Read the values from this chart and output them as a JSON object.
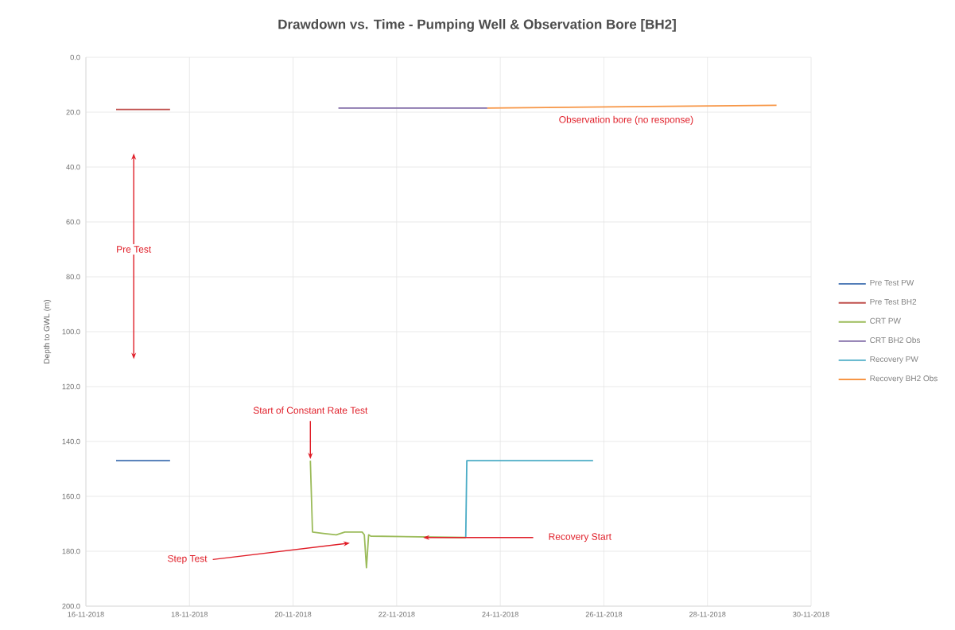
{
  "chart_data": {
    "type": "line",
    "title": "Drawdown vs. Time - Pumping Well & Observation Bore [BH2]",
    "ylabel": "Depth to GWL (m)",
    "xlim": [
      "2018-11-16",
      "2018-11-30"
    ],
    "xticks": [
      {
        "value": "2018-11-16",
        "label": "16-11-2018"
      },
      {
        "value": "2018-11-18",
        "label": "18-11-2018"
      },
      {
        "value": "2018-11-20",
        "label": "20-11-2018"
      },
      {
        "value": "2018-11-22",
        "label": "22-11-2018"
      },
      {
        "value": "2018-11-24",
        "label": "24-11-2018"
      },
      {
        "value": "2018-11-26",
        "label": "26-11-2018"
      },
      {
        "value": "2018-11-28",
        "label": "28-11-2018"
      },
      {
        "value": "2018-11-30",
        "label": "30-11-2018"
      }
    ],
    "ylim": [
      200,
      0
    ],
    "yticks": [
      {
        "value": 0,
        "label": "0.0"
      },
      {
        "value": 20,
        "label": "20.0"
      },
      {
        "value": 40,
        "label": "40.0"
      },
      {
        "value": 60,
        "label": "60.0"
      },
      {
        "value": 80,
        "label": "80.0"
      },
      {
        "value": 100,
        "label": "100.0"
      },
      {
        "value": 120,
        "label": "120.0"
      },
      {
        "value": 140,
        "label": "140.0"
      },
      {
        "value": 160,
        "label": "160.0"
      },
      {
        "value": 180,
        "label": "180.0"
      },
      {
        "value": 200,
        "label": "200.0"
      }
    ],
    "grid": true,
    "legend": "right",
    "marker": "none",
    "line_style": "solid",
    "series": [
      {
        "name": "Pre Test PW",
        "color": "#3f6fb0",
        "x": [
          "2018-11-16T14:00",
          "2018-11-17T15:00"
        ],
        "values": [
          147,
          147
        ]
      },
      {
        "name": "Pre Test BH2",
        "color": "#c0504d",
        "x": [
          "2018-11-16T14:00",
          "2018-11-17T15:00"
        ],
        "values": [
          19,
          19
        ]
      },
      {
        "name": "CRT PW",
        "color": "#9bbb59",
        "x": [
          "2018-11-20T08:00",
          "2018-11-20T09:00",
          "2018-11-20T14:00",
          "2018-11-20T20:00",
          "2018-11-21T00:00",
          "2018-11-21T08:00",
          "2018-11-21T09:00",
          "2018-11-21T10:00",
          "2018-11-21T11:00",
          "2018-11-21T12:00",
          "2018-11-23T08:00"
        ],
        "values": [
          147,
          173,
          173.5,
          174,
          173,
          173,
          174,
          186,
          174,
          174.5,
          175
        ]
      },
      {
        "name": "CRT BH2 Obs",
        "color": "#7f6aa6",
        "x": [
          "2018-11-20T21:00",
          "2018-11-23T18:00"
        ],
        "values": [
          18.5,
          18.5
        ]
      },
      {
        "name": "Recovery PW",
        "color": "#4bacc6",
        "x": [
          "2018-11-23T08:00",
          "2018-11-23T08:30",
          "2018-11-25T19:00"
        ],
        "values": [
          175,
          147,
          147
        ]
      },
      {
        "name": "Recovery BH2 Obs",
        "color": "#f79646",
        "x": [
          "2018-11-23T18:00",
          "2018-11-29T08:00"
        ],
        "values": [
          18.5,
          17.5
        ]
      }
    ],
    "annotations": [
      "Pre Test",
      "Observation bore (no response)",
      {
        "text": "Start of Constant Rate Test",
        "x": "2018-11-20T08:00",
        "y": 147
      },
      "Step Test",
      "Recovery Start"
    ]
  }
}
